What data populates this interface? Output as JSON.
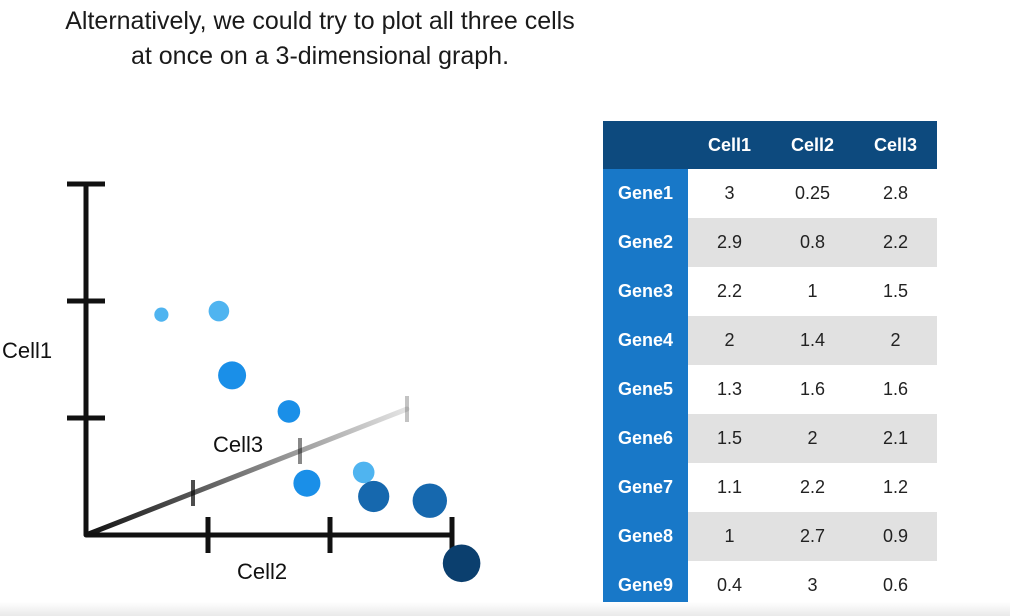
{
  "caption": {
    "line1": "Alternatively, we could try to plot all three cells",
    "line2": "at once on a 3-dimensional graph."
  },
  "colors": {
    "axis": "#111111",
    "header_bg": "#0d4a7e",
    "gene_label_bg": "#1878c8",
    "stripe": "#e1e1e1",
    "point_light": "#4fb4f0",
    "point_mid": "#1a8fe8",
    "point_dark": "#1668ae",
    "point_darkest": "#0b3f6e"
  },
  "chart_data": {
    "type": "scatter",
    "projection": "3d",
    "axes": {
      "x": {
        "label": "Cell2",
        "range": [
          0,
          3
        ]
      },
      "y": {
        "label": "Cell1",
        "range": [
          0,
          3
        ]
      },
      "z": {
        "label": "Cell3",
        "range": [
          0,
          3
        ]
      }
    },
    "grid": false,
    "legend": "none",
    "points": [
      {
        "gene": "Gene1",
        "cell1": 3,
        "cell2": 0.25,
        "cell3": 2.8
      },
      {
        "gene": "Gene2",
        "cell1": 2.9,
        "cell2": 0.8,
        "cell3": 2.2
      },
      {
        "gene": "Gene3",
        "cell1": 2.2,
        "cell2": 1,
        "cell3": 1.5
      },
      {
        "gene": "Gene4",
        "cell1": 2,
        "cell2": 1.4,
        "cell3": 2
      },
      {
        "gene": "Gene5",
        "cell1": 1.3,
        "cell2": 1.6,
        "cell3": 1.6
      },
      {
        "gene": "Gene6",
        "cell1": 1.5,
        "cell2": 2,
        "cell3": 2.1
      },
      {
        "gene": "Gene7",
        "cell1": 1.1,
        "cell2": 2.2,
        "cell3": 1.2
      },
      {
        "gene": "Gene8",
        "cell1": 1,
        "cell2": 2.7,
        "cell3": 0.9
      },
      {
        "gene": "Gene9",
        "cell1": 0.4,
        "cell2": 3,
        "cell3": 0.6
      }
    ]
  },
  "table": {
    "columns": [
      "Cell1",
      "Cell2",
      "Cell3"
    ],
    "rows": [
      {
        "gene": "Gene1",
        "values": [
          "3",
          "0.25",
          "2.8"
        ]
      },
      {
        "gene": "Gene2",
        "values": [
          "2.9",
          "0.8",
          "2.2"
        ]
      },
      {
        "gene": "Gene3",
        "values": [
          "2.2",
          "1",
          "1.5"
        ]
      },
      {
        "gene": "Gene4",
        "values": [
          "2",
          "1.4",
          "2"
        ]
      },
      {
        "gene": "Gene5",
        "values": [
          "1.3",
          "1.6",
          "1.6"
        ]
      },
      {
        "gene": "Gene6",
        "values": [
          "1.5",
          "2",
          "2.1"
        ]
      },
      {
        "gene": "Gene7",
        "values": [
          "1.1",
          "2.2",
          "1.2"
        ]
      },
      {
        "gene": "Gene8",
        "values": [
          "1",
          "2.7",
          "0.9"
        ]
      },
      {
        "gene": "Gene9",
        "values": [
          "0.4",
          "3",
          "0.6"
        ]
      }
    ]
  }
}
